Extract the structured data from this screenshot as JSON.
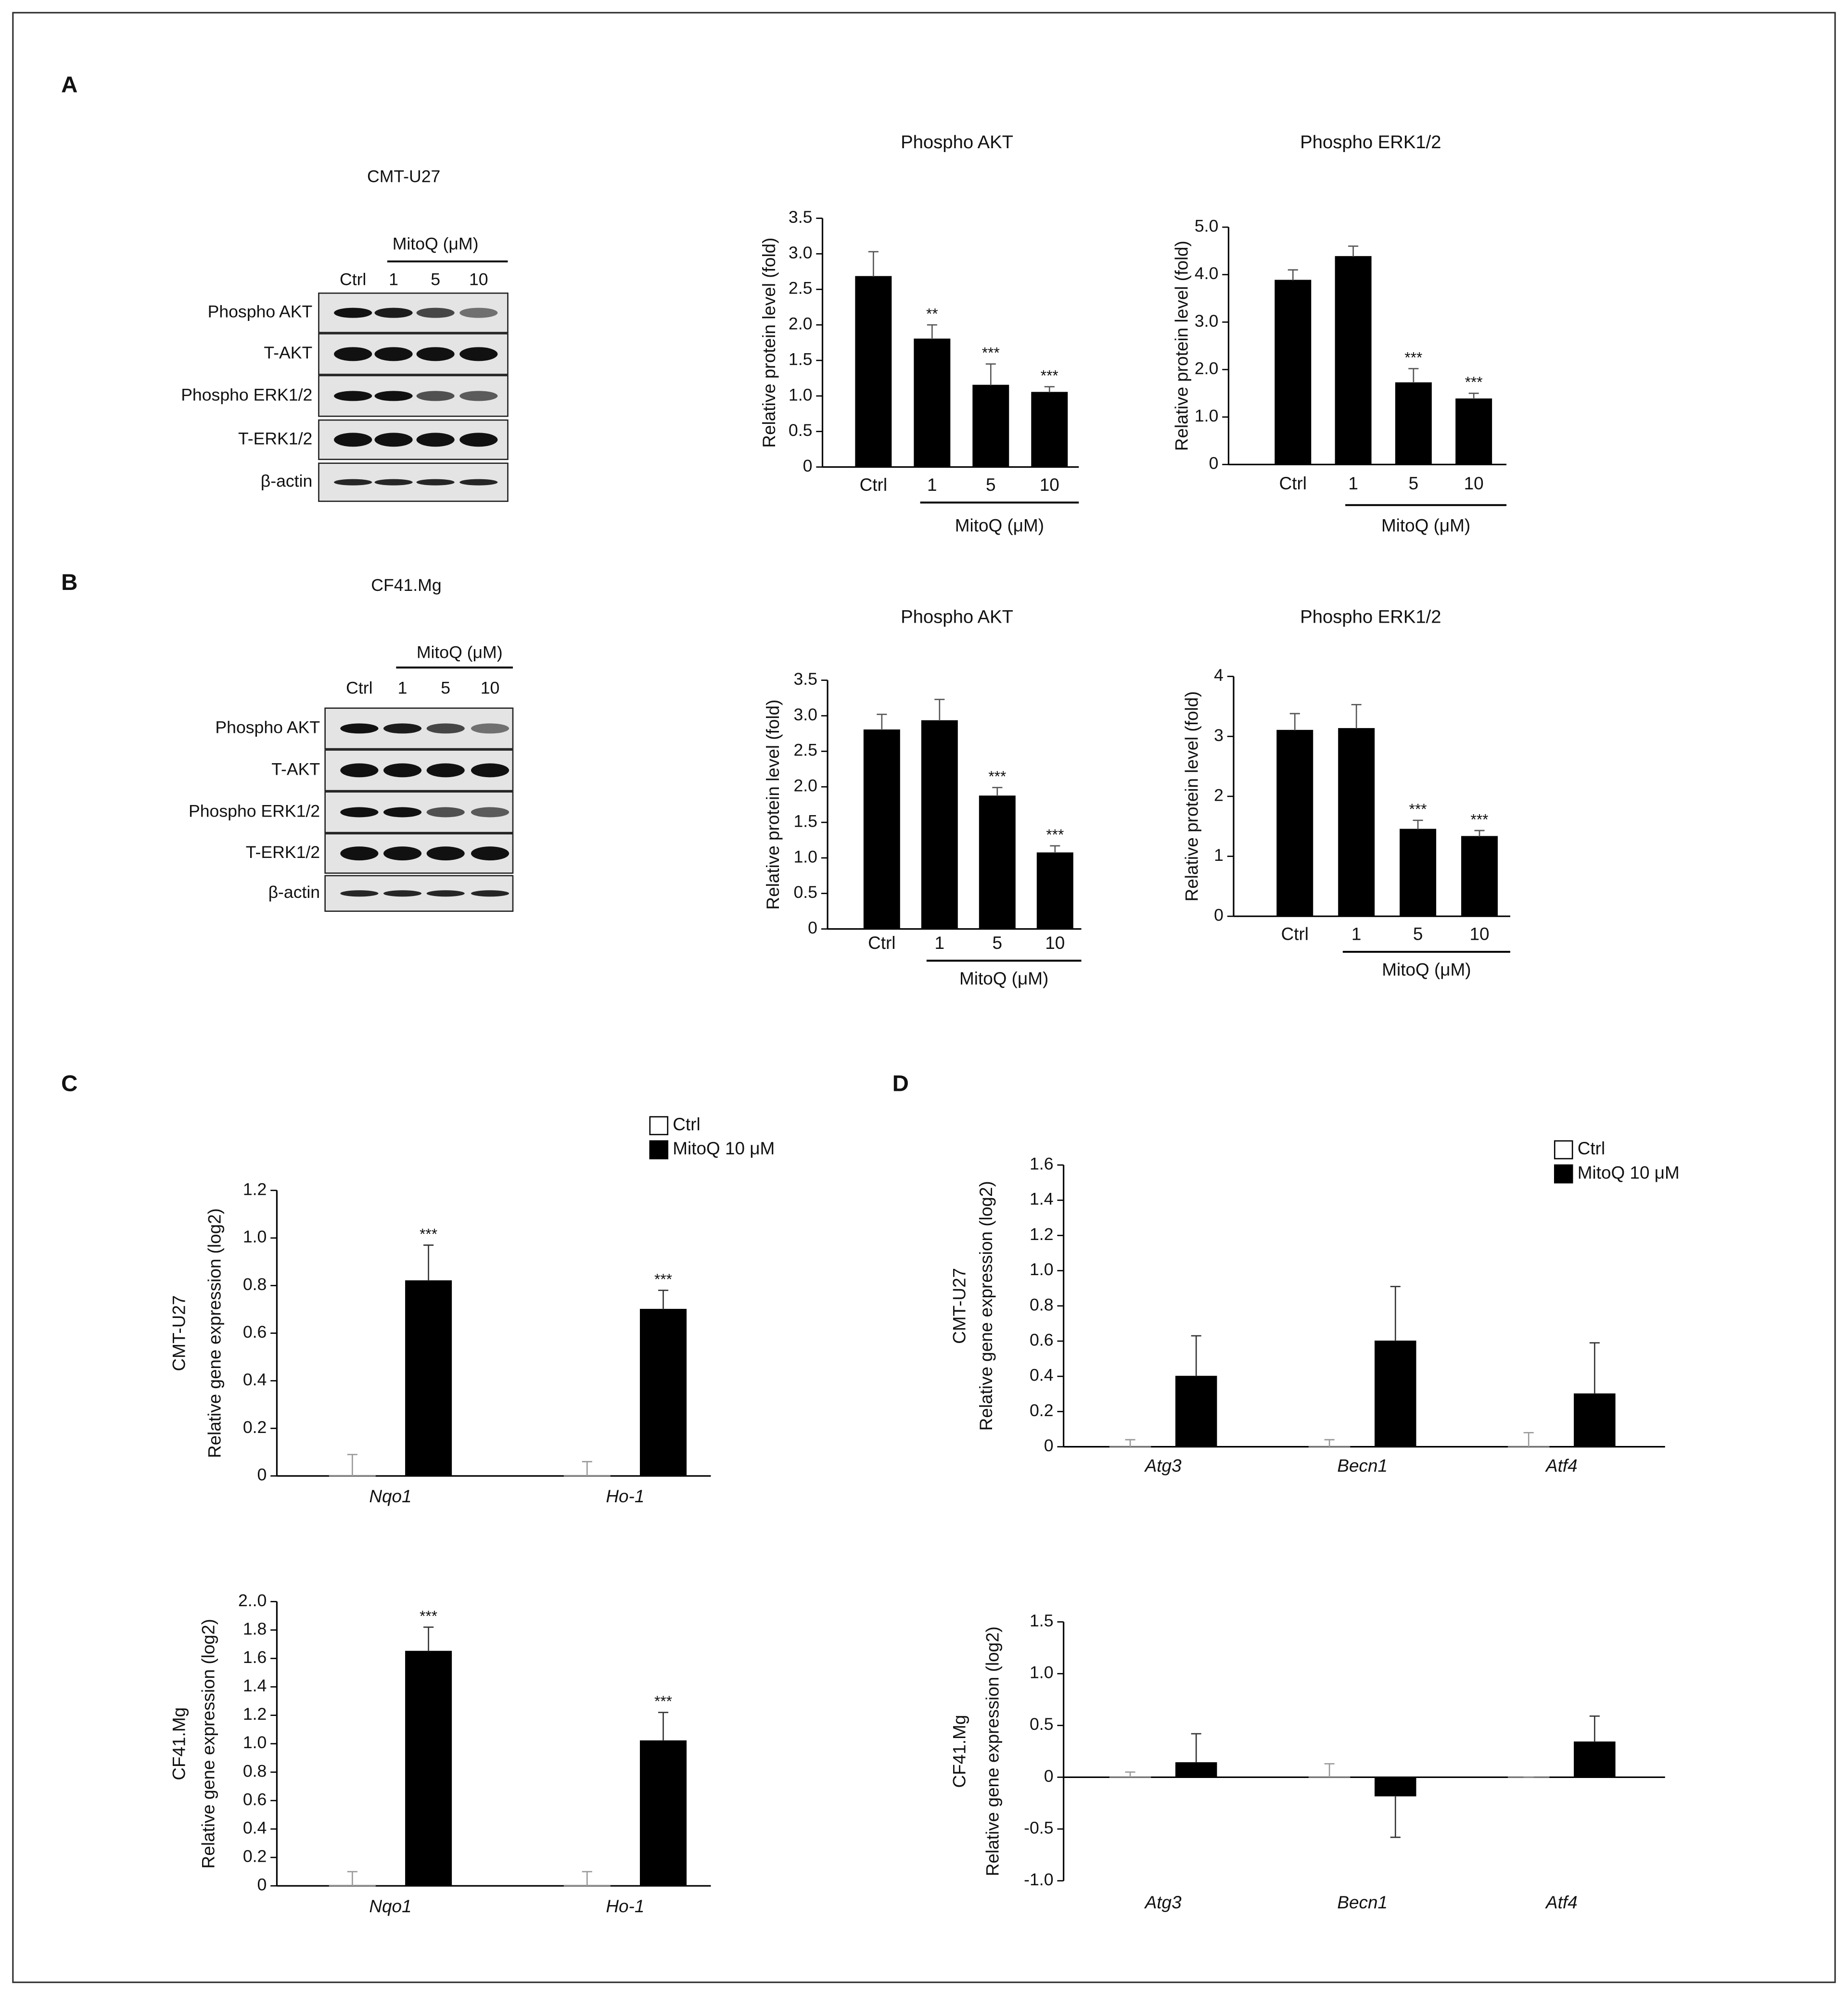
{
  "panel_labels": [
    "A",
    "B",
    "C",
    "D"
  ],
  "blots": [
    {
      "title": "CMT-U27",
      "treatment": "MitoQ (μM)",
      "lanes": [
        "Ctrl",
        "1",
        "5",
        "10"
      ],
      "rows": [
        "Phospho AKT",
        "T-AKT",
        "Phospho ERK1/2",
        "T-ERK1/2",
        "β-actin"
      ]
    },
    {
      "title": "CF41.Mg",
      "treatment": "MitoQ (μM)",
      "lanes": [
        "Ctrl",
        "1",
        "5",
        "10"
      ],
      "rows": [
        "Phospho AKT",
        "T-AKT",
        "Phospho ERK1/2",
        "T-ERK1/2",
        "β-actin"
      ]
    }
  ],
  "chart_data": [
    {
      "type": "bar",
      "title": "Phospho AKT",
      "ylabel": "Relative protein level (fold)",
      "categories": [
        "Ctrl",
        "1",
        "5",
        "10"
      ],
      "group_label": "MitoQ (μM)",
      "values": [
        2.68,
        1.8,
        1.15,
        1.05
      ],
      "errors": [
        0.35,
        0.2,
        0.3,
        0.08
      ],
      "annotations": [
        null,
        "**",
        "***",
        "***"
      ],
      "color": "#000000",
      "ylim": [
        0,
        3.5
      ],
      "yticks": [
        0,
        0.5,
        {
          "value": 1,
          "label": "1.0"
        },
        1.5,
        {
          "value": 2,
          "label": "2.0"
        },
        2.5,
        {
          "value": 3,
          "label": "3.0"
        },
        3.5
      ]
    },
    {
      "type": "bar",
      "title": "Phospho ERK1/2",
      "ylabel": "Relative protein level (fold)",
      "categories": [
        "Ctrl",
        "1",
        "5",
        "10"
      ],
      "group_label": "MitoQ (μM)",
      "values": [
        3.88,
        4.38,
        1.72,
        1.38
      ],
      "errors": [
        0.22,
        0.22,
        0.3,
        0.12
      ],
      "annotations": [
        null,
        null,
        "***",
        "***"
      ],
      "color": "#000000",
      "ylim": [
        0,
        5
      ],
      "yticks": [
        0,
        {
          "value": 1,
          "label": "1.0"
        },
        {
          "value": 2,
          "label": "2.0"
        },
        {
          "value": 3,
          "label": "3.0"
        },
        {
          "value": 4,
          "label": "4.0"
        },
        {
          "value": 5,
          "label": "5.0"
        }
      ]
    },
    {
      "type": "bar",
      "title": "Phospho AKT",
      "ylabel": "Relative protein level (fold)",
      "categories": [
        "Ctrl",
        "1",
        "5",
        "10"
      ],
      "group_label": "MitoQ (μM)",
      "values": [
        2.8,
        2.93,
        1.87,
        1.07
      ],
      "errors": [
        0.22,
        0.3,
        0.12,
        0.1
      ],
      "annotations": [
        null,
        null,
        "***",
        "***"
      ],
      "color": "#000000",
      "ylim": [
        0,
        3.5
      ],
      "yticks": [
        0,
        0.5,
        {
          "value": 1,
          "label": "1.0"
        },
        1.5,
        {
          "value": 2,
          "label": "2.0"
        },
        2.5,
        {
          "value": 3,
          "label": "3.0"
        },
        3.5
      ]
    },
    {
      "type": "bar",
      "title": "Phospho ERK1/2",
      "ylabel": "Relative protein level (fold)",
      "categories": [
        "Ctrl",
        "1",
        "5",
        "10"
      ],
      "group_label": "MitoQ (μM)",
      "values": [
        3.1,
        3.13,
        1.45,
        1.33
      ],
      "errors": [
        0.28,
        0.4,
        0.15,
        0.1
      ],
      "annotations": [
        null,
        null,
        "***",
        "***"
      ],
      "color": "#000000",
      "ylim": [
        0,
        4
      ],
      "yticks": [
        0,
        1,
        2,
        3,
        4
      ]
    },
    {
      "type": "grouped_bar",
      "row_label": "CMT-U27",
      "ylabel": "Relative gene expression (log2)",
      "categories": [
        "Nqo1",
        "Ho-1"
      ],
      "legend": true,
      "series": [
        {
          "name": "Ctrl",
          "color": "#ffffff",
          "values": [
            0,
            0
          ],
          "errors": [
            0.09,
            0.06
          ]
        },
        {
          "name": "MitoQ 10 μM",
          "color": "#000000",
          "values": [
            0.82,
            0.7
          ],
          "errors": [
            0.15,
            0.08
          ],
          "annotations": [
            "***",
            "***"
          ]
        }
      ],
      "ylim": [
        0,
        1.2
      ],
      "yticks": [
        0,
        0.2,
        0.4,
        0.6,
        0.8,
        {
          "value": 1,
          "label": "1.0"
        },
        1.2
      ]
    },
    {
      "type": "grouped_bar",
      "row_label": "CF41.Mg",
      "ylabel": "Relative gene expression (log2)",
      "categories": [
        "Nqo1",
        "Ho-1"
      ],
      "legend": false,
      "series": [
        {
          "color": "#ffffff",
          "values": [
            0,
            0
          ],
          "errors": [
            0.1,
            0.1
          ]
        },
        {
          "color": "#000000",
          "values": [
            1.65,
            1.02
          ],
          "errors": [
            0.17,
            0.2
          ],
          "annotations": [
            "***",
            "***"
          ]
        }
      ],
      "ylim": [
        0,
        2
      ],
      "yticks": [
        0,
        0.2,
        0.4,
        0.6,
        0.8,
        {
          "value": 1,
          "label": "1.0"
        },
        1.2,
        1.4,
        1.6,
        1.8,
        {
          "value": 2,
          "label": "2..0"
        }
      ]
    },
    {
      "type": "grouped_bar",
      "row_label": "CMT-U27",
      "ylabel": "Relative gene expression (log2)",
      "categories": [
        "Atg3",
        "Becn1",
        "Atf4"
      ],
      "legend": true,
      "series": [
        {
          "name": "Ctrl",
          "color": "#ffffff",
          "values": [
            0,
            0,
            0
          ],
          "errors": [
            0.04,
            0.04,
            0.08
          ]
        },
        {
          "name": "MitoQ 10 μM",
          "color": "#000000",
          "values": [
            0.4,
            0.6,
            0.3
          ],
          "errors": [
            0.23,
            0.31,
            0.29
          ]
        }
      ],
      "ylim": [
        0,
        1.6
      ],
      "yticks": [
        0,
        0.2,
        0.4,
        0.6,
        0.8,
        {
          "value": 1,
          "label": "1.0"
        },
        1.2,
        1.4,
        1.6
      ]
    },
    {
      "type": "grouped_bar",
      "row_label": "CF41.Mg",
      "ylabel": "Relative gene expression (log2)",
      "categories": [
        "Atg3",
        "Becn1",
        "Atf4"
      ],
      "legend": false,
      "series": [
        {
          "color": "#ffffff",
          "values": [
            0,
            0,
            0
          ],
          "errors": [
            0.05,
            0.13,
            0
          ]
        },
        {
          "color": "#000000",
          "values": [
            0.14,
            -0.18,
            0.34
          ],
          "errors": [
            0.28,
            0.4,
            0.25
          ]
        }
      ],
      "ylim": [
        -1,
        1.5
      ],
      "yticks": [
        {
          "value": -1,
          "label": "-1.0"
        },
        -0.5,
        0,
        0.5,
        {
          "value": 1,
          "label": "1.0"
        },
        1.5
      ]
    }
  ]
}
